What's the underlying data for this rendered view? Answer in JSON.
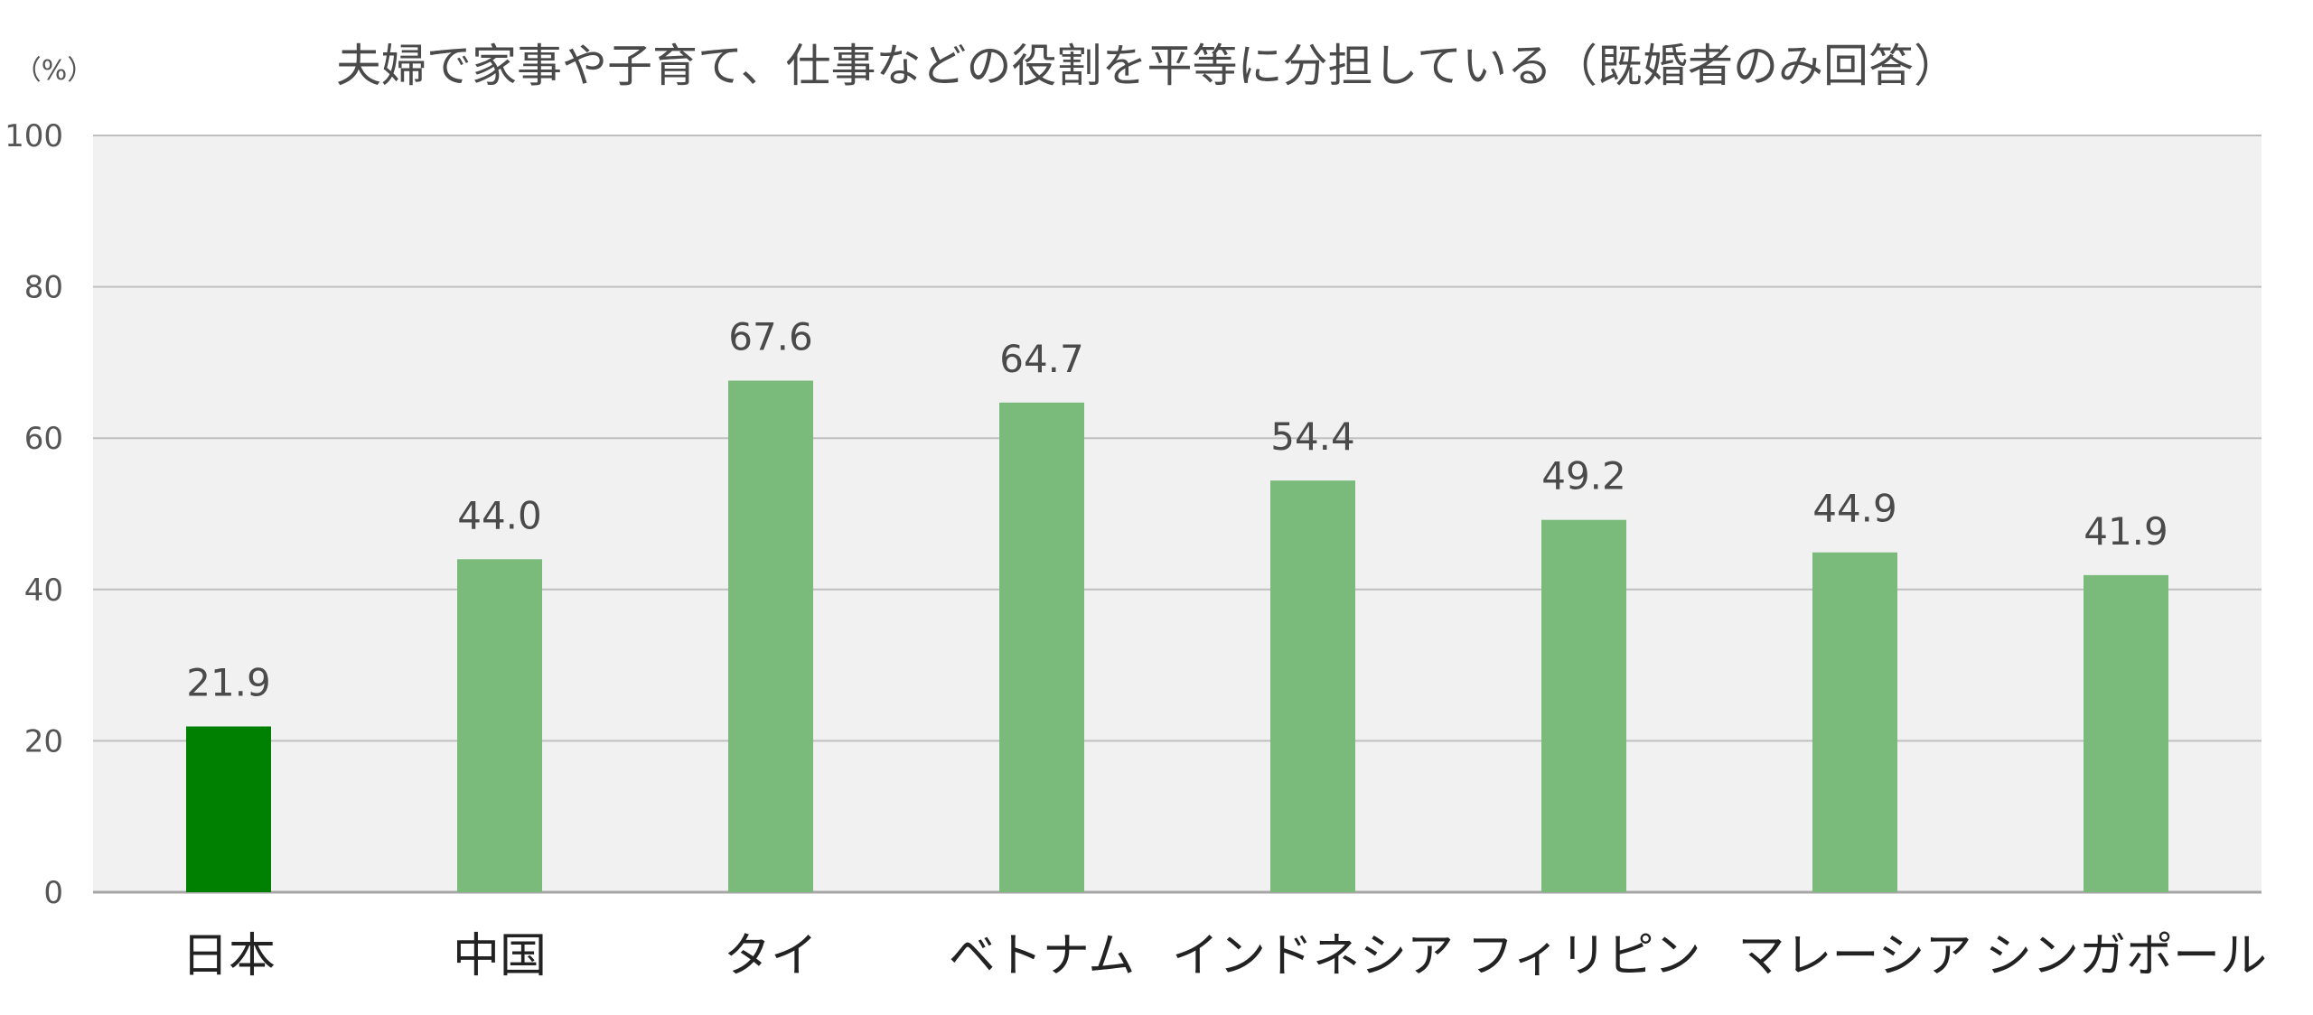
{
  "chart_data": {
    "type": "bar",
    "title": "夫婦で家事や子育て、仕事などの役割を平等に分担している（既婚者のみ回答）",
    "ylabel": "（%）",
    "xlabel": "",
    "categories": [
      "日本",
      "中国",
      "タイ",
      "ベトナム",
      "インドネシア",
      "フィリピン",
      "マレーシア",
      "シンガポール"
    ],
    "values": [
      21.9,
      44.0,
      67.6,
      64.7,
      54.4,
      49.2,
      44.9,
      41.9
    ],
    "value_labels": [
      "21.9",
      "44.0",
      "67.6",
      "64.7",
      "54.4",
      "49.2",
      "44.9",
      "41.9"
    ],
    "ylim": [
      0,
      100
    ],
    "yticks": [
      0,
      20,
      40,
      60,
      80,
      100
    ],
    "grid": true,
    "highlight_index": 0,
    "colors": {
      "highlight": "#008000",
      "bar": "#7aba7a",
      "plot_bg": "#f1f1f1",
      "grid": "#bfbfbf",
      "axis": "#a6a6a6"
    }
  }
}
